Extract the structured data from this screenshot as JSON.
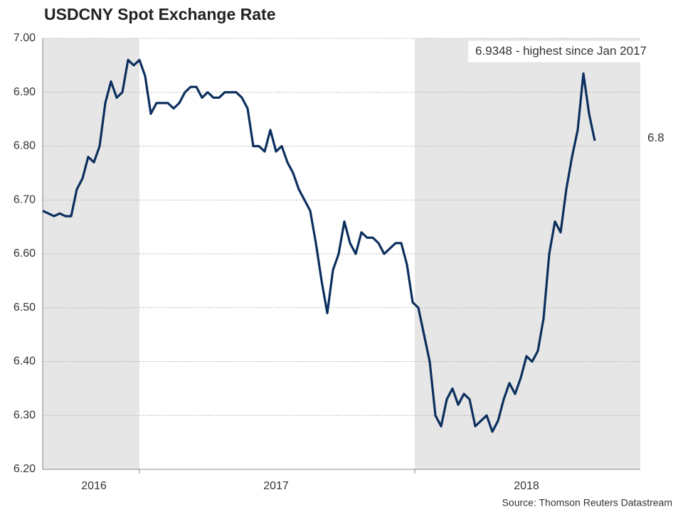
{
  "chart_data": {
    "type": "line",
    "title": "USDCNY Spot Exchange Rate",
    "source": "Source: Thomson Reuters Datastream",
    "categories": [
      null,
      null,
      null,
      null,
      null,
      null,
      null,
      null,
      null,
      "2016",
      null,
      null,
      null,
      null,
      null,
      null,
      null,
      null,
      null,
      null,
      null,
      null,
      null,
      null,
      null,
      null,
      null,
      null,
      null,
      null,
      null,
      null,
      null,
      null,
      null,
      null,
      null,
      null,
      null,
      null,
      null,
      "2017",
      null,
      null,
      null,
      null,
      null,
      null,
      null,
      null,
      null,
      null,
      null,
      null,
      null,
      null,
      null,
      null,
      null,
      null,
      null,
      null,
      null,
      null,
      null,
      null,
      null,
      null,
      null,
      null,
      null,
      null,
      null,
      null,
      null,
      null,
      null,
      null,
      null,
      null,
      null,
      null,
      null,
      null,
      null,
      "2018",
      null,
      null,
      null,
      null,
      null,
      null,
      null,
      null,
      null,
      null,
      null,
      null
    ],
    "series": [
      {
        "name": "USDCNY",
        "color": "#0b2f5e",
        "values": [
          6.68,
          6.675,
          6.67,
          6.675,
          6.67,
          6.67,
          6.72,
          6.74,
          6.78,
          6.77,
          6.8,
          6.88,
          6.92,
          6.89,
          6.9,
          6.96,
          6.95,
          6.96,
          6.93,
          6.86,
          6.88,
          6.88,
          6.88,
          6.87,
          6.88,
          6.9,
          6.91,
          6.91,
          6.89,
          6.9,
          6.89,
          6.89,
          6.9,
          6.9,
          6.9,
          6.89,
          6.87,
          6.8,
          6.8,
          6.79,
          6.83,
          6.79,
          6.8,
          6.77,
          6.75,
          6.72,
          6.7,
          6.68,
          6.62,
          6.55,
          6.49,
          6.57,
          6.6,
          6.66,
          6.62,
          6.6,
          6.64,
          6.63,
          6.63,
          6.62,
          6.6,
          6.61,
          6.62,
          6.62,
          6.58,
          6.51,
          6.5,
          6.45,
          6.4,
          6.3,
          6.28,
          6.33,
          6.35,
          6.32,
          6.34,
          6.33,
          6.28,
          6.29,
          6.3,
          6.27,
          6.29,
          6.33,
          6.36,
          6.34,
          6.37,
          6.41,
          6.4,
          6.42,
          6.48,
          6.6,
          6.66,
          6.64,
          6.72,
          6.78,
          6.83,
          6.9348,
          6.86,
          6.81
        ]
      }
    ],
    "ylim": [
      6.2,
      7.0
    ],
    "yticks": [
      {
        "value": 6.2,
        "label": "6.20"
      },
      {
        "value": 6.3,
        "label": "6.30"
      },
      {
        "value": 6.4,
        "label": "6.40"
      },
      {
        "value": 6.5,
        "label": "6.50"
      },
      {
        "value": 6.6,
        "label": "6.60"
      },
      {
        "value": 6.7,
        "label": "6.70"
      },
      {
        "value": 6.8,
        "label": "6.80"
      },
      {
        "value": 6.9,
        "label": "6.90"
      },
      {
        "value": 7.0,
        "label": "7.00"
      }
    ],
    "grid": true,
    "annotations": [
      {
        "text": "6.9348 - highest since Jan 2017",
        "value": 6.9348
      },
      {
        "text": "6.8",
        "value": 6.8
      }
    ]
  }
}
